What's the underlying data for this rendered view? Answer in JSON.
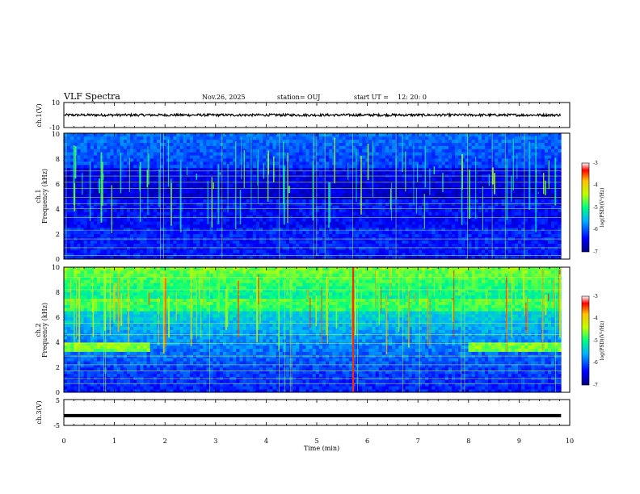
{
  "header": {
    "title": "VLF Spectra",
    "date": "Nov.26, 2025",
    "station": "station= OUJ",
    "start_label": "start  UT  =",
    "start_time": "12: 20: 0"
  },
  "chart_data": [
    {
      "type": "line",
      "name": "ch1-waveform",
      "ylabel": "ch.1(V)",
      "ylim": [
        -10,
        10
      ],
      "yticks": [
        "10",
        "-10"
      ],
      "xlim": [
        0,
        10
      ],
      "level": 0,
      "noise_amplitude": 1
    },
    {
      "type": "heatmap",
      "name": "ch1-spectrogram",
      "ylabel_top": "ch.1",
      "ylabel": "Frequency  (kHz)",
      "ylim": [
        0,
        10
      ],
      "yticks": [
        "0",
        "2",
        "4",
        "6",
        "8",
        "10"
      ],
      "xlim": [
        0,
        9.83
      ],
      "colorbar": {
        "label": "log(PSD)(V²/Hz)",
        "range": [
          -7,
          -3
        ],
        "ticks": [
          "-3",
          "-4",
          "-5",
          "-6",
          "-7"
        ]
      }
    },
    {
      "type": "heatmap",
      "name": "ch2-spectrogram",
      "ylabel_top": "ch.2",
      "ylabel": "Frequency  (kHz)",
      "ylim": [
        0,
        10
      ],
      "yticks": [
        "0",
        "2",
        "4",
        "6",
        "8",
        "10"
      ],
      "xlim": [
        0,
        9.83
      ],
      "features": {
        "band_khz": 3.6,
        "band_segments_min": [
          [
            0,
            1.7
          ],
          [
            8.0,
            9.83
          ]
        ],
        "strong_burst_min": 5.72
      },
      "colorbar": {
        "label": "log(PSD)(V²/Hz)",
        "range": [
          -7,
          -3
        ],
        "ticks": [
          "-3",
          "-4",
          "-5",
          "-6",
          "-7"
        ]
      }
    },
    {
      "type": "line",
      "name": "ch3-waveform",
      "ylabel": "ch.3(V)",
      "ylim": [
        -5,
        5
      ],
      "yticks": [
        "5",
        "-5"
      ],
      "xlim": [
        0,
        10
      ],
      "level": -1.2
    }
  ],
  "xaxis": {
    "label": "Time  (min)",
    "ticks": [
      "0",
      "1",
      "2",
      "3",
      "4",
      "5",
      "6",
      "7",
      "8",
      "9",
      "10"
    ]
  },
  "colors": {
    "frame": "#000000",
    "background": "#ffffff"
  }
}
